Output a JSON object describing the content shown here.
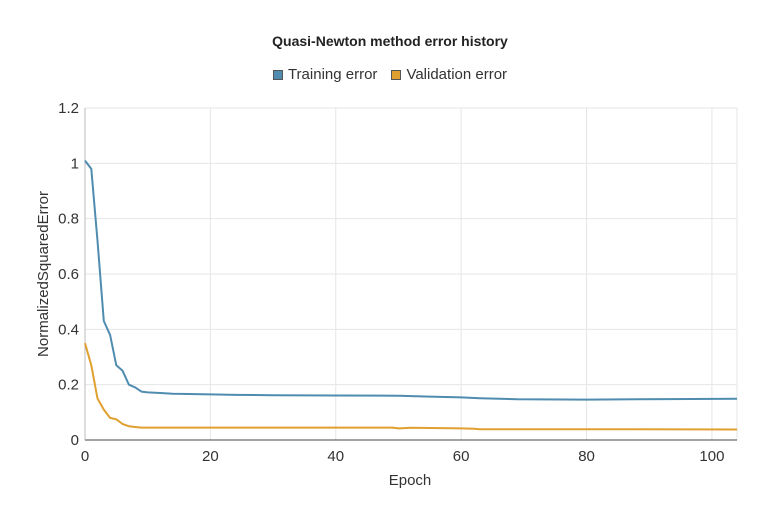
{
  "chart_data": {
    "type": "line",
    "title": "Quasi-Newton method error history",
    "xlabel": "Epoch",
    "ylabel": "NormalizedSquaredError",
    "xlim": [
      0,
      104
    ],
    "ylim": [
      0,
      1.2
    ],
    "x_ticks": [
      "0",
      "20",
      "40",
      "60",
      "80",
      "100"
    ],
    "y_ticks": [
      "0",
      "0.2",
      "0.4",
      "0.6",
      "0.8",
      "1",
      "1.2"
    ],
    "grid": true,
    "legend_position": "top",
    "series": [
      {
        "name": "Training error",
        "color": "#4f8cb0",
        "x": [
          0,
          1,
          2,
          3,
          4,
          5,
          6,
          7,
          8,
          9,
          10,
          12,
          14,
          20,
          24,
          30,
          40,
          50,
          55,
          60,
          63,
          69,
          80,
          93,
          104
        ],
        "y": [
          1.01,
          0.98,
          0.72,
          0.43,
          0.38,
          0.27,
          0.25,
          0.2,
          0.19,
          0.175,
          0.172,
          0.17,
          0.167,
          0.165,
          0.163,
          0.162,
          0.161,
          0.16,
          0.157,
          0.154,
          0.151,
          0.147,
          0.146,
          0.148,
          0.149
        ]
      },
      {
        "name": "Validation error",
        "color": "#e0a030",
        "x": [
          0,
          1,
          2,
          3,
          4,
          5,
          6,
          7,
          8,
          9,
          10,
          20,
          40,
          49,
          50,
          51,
          52,
          60,
          62,
          63,
          80,
          104
        ],
        "y": [
          0.35,
          0.27,
          0.15,
          0.11,
          0.08,
          0.075,
          0.058,
          0.05,
          0.047,
          0.045,
          0.045,
          0.045,
          0.045,
          0.045,
          0.042,
          0.043,
          0.044,
          0.042,
          0.041,
          0.039,
          0.039,
          0.038
        ]
      }
    ]
  }
}
